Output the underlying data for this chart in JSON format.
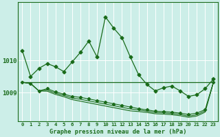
{
  "title": "Graphe pression niveau de la mer (hPa)",
  "bg_color": "#cceee8",
  "grid_color": "#ffffff",
  "line_color": "#1a6b1a",
  "x_labels": [
    "0",
    "1",
    "2",
    "3",
    "4",
    "5",
    "6",
    "7",
    "8",
    "9",
    "10",
    "11",
    "12",
    "13",
    "14",
    "15",
    "16",
    "17",
    "18",
    "19",
    "20",
    "21",
    "22",
    "23"
  ],
  "yticks": [
    1009,
    1010
  ],
  "ylim": [
    1008.1,
    1011.8
  ],
  "xlim": [
    -0.5,
    23.5
  ],
  "series1": [
    1010.3,
    1009.5,
    1009.75,
    1009.9,
    1009.8,
    1009.65,
    1009.95,
    1010.25,
    1010.6,
    1010.1,
    1011.35,
    1011.0,
    1010.7,
    1010.1,
    1009.55,
    1009.25,
    1009.05,
    1009.15,
    1009.2,
    1009.05,
    1008.88,
    1008.93,
    1009.12,
    1009.42
  ],
  "series_flat": [
    1009.32,
    1009.32,
    1009.32,
    1009.32,
    1009.32,
    1009.32,
    1009.32,
    1009.32,
    1009.32,
    1009.32,
    1009.32,
    1009.32,
    1009.32,
    1009.32,
    1009.32,
    1009.32,
    1009.32,
    1009.32,
    1009.32,
    1009.32,
    1009.32,
    1009.32,
    1009.32,
    1009.32
  ],
  "series2": [
    1009.32,
    1009.28,
    1009.05,
    1009.12,
    1009.02,
    1008.95,
    1008.88,
    1008.85,
    1008.8,
    1008.75,
    1008.7,
    1008.65,
    1008.6,
    1008.55,
    1008.5,
    1008.46,
    1008.42,
    1008.41,
    1008.39,
    1008.36,
    1008.32,
    1008.36,
    1008.47,
    1009.32
  ],
  "series3": [
    1009.32,
    1009.28,
    1009.05,
    1009.08,
    1008.98,
    1008.91,
    1008.83,
    1008.79,
    1008.74,
    1008.69,
    1008.64,
    1008.59,
    1008.54,
    1008.49,
    1008.46,
    1008.42,
    1008.38,
    1008.37,
    1008.35,
    1008.32,
    1008.27,
    1008.31,
    1008.43,
    1009.32
  ],
  "series4": [
    1009.32,
    1009.28,
    1009.05,
    1009.04,
    1008.94,
    1008.87,
    1008.78,
    1008.73,
    1008.68,
    1008.63,
    1008.58,
    1008.53,
    1008.48,
    1008.43,
    1008.41,
    1008.38,
    1008.34,
    1008.33,
    1008.31,
    1008.28,
    1008.23,
    1008.27,
    1008.39,
    1009.32
  ]
}
